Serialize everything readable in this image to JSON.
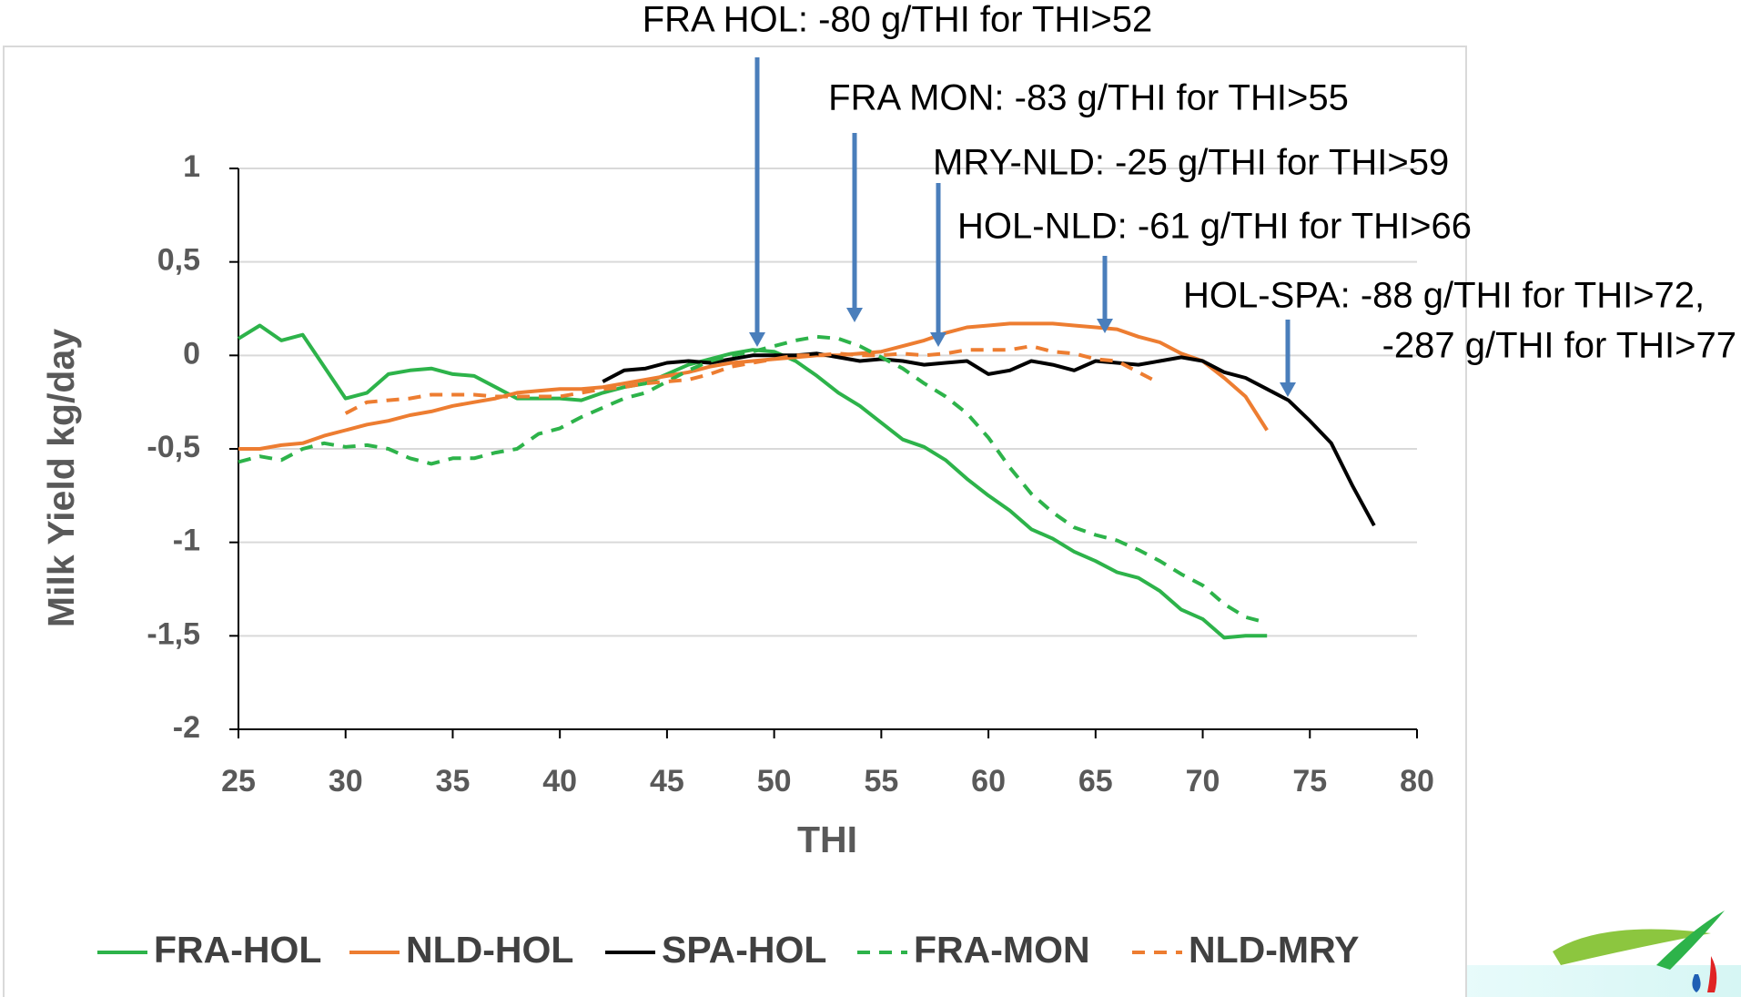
{
  "chart_data": {
    "type": "line",
    "x_label": "THI",
    "y_label": "Milk Yield kg/day",
    "x": [
      25,
      26,
      27,
      28,
      29,
      30,
      31,
      32,
      33,
      34,
      35,
      36,
      37,
      38,
      39,
      40,
      41,
      42,
      43,
      44,
      45,
      46,
      47,
      48,
      49,
      50,
      51,
      52,
      53,
      54,
      55,
      56,
      57,
      58,
      59,
      60,
      61,
      62,
      63,
      64,
      65,
      66,
      67,
      68,
      69,
      70,
      71,
      72,
      73,
      74,
      75,
      76,
      77,
      78
    ],
    "series": [
      {
        "name": "FRA-HOL",
        "color": "#2db34a",
        "dashed": false,
        "values": [
          0.09,
          0.16,
          0.08,
          0.11,
          -0.06,
          -0.23,
          -0.2,
          -0.1,
          -0.08,
          -0.07,
          -0.1,
          -0.11,
          -0.17,
          -0.23,
          -0.23,
          -0.23,
          -0.24,
          -0.2,
          -0.17,
          -0.15,
          -0.1,
          -0.05,
          -0.02,
          0.01,
          0.03,
          0.02,
          -0.03,
          -0.11,
          -0.2,
          -0.27,
          -0.36,
          -0.45,
          -0.49,
          -0.56,
          -0.66,
          -0.75,
          -0.83,
          -0.93,
          -0.98,
          -1.05,
          -1.1,
          -1.16,
          -1.19,
          -1.26,
          -1.36,
          -1.41,
          -1.51,
          -1.5,
          -1.5,
          null,
          null,
          null,
          null,
          null
        ]
      },
      {
        "name": "NLD-HOL",
        "color": "#ed7d31",
        "dashed": false,
        "values": [
          -0.5,
          -0.5,
          -0.48,
          -0.47,
          -0.43,
          -0.4,
          -0.37,
          -0.35,
          -0.32,
          -0.3,
          -0.27,
          -0.25,
          -0.23,
          -0.2,
          -0.19,
          -0.18,
          -0.18,
          -0.17,
          -0.15,
          -0.13,
          -0.11,
          -0.09,
          -0.06,
          -0.04,
          -0.03,
          -0.02,
          -0.01,
          0,
          0,
          0.01,
          0.02,
          0.05,
          0.08,
          0.12,
          0.15,
          0.16,
          0.17,
          0.17,
          0.17,
          0.16,
          0.15,
          0.14,
          0.1,
          0.07,
          0.01,
          -0.03,
          -0.12,
          -0.22,
          -0.4,
          null,
          null,
          null,
          null,
          null
        ]
      },
      {
        "name": "SPA-HOL",
        "color": "#000000",
        "dashed": false,
        "values": [
          null,
          null,
          null,
          null,
          null,
          null,
          null,
          null,
          null,
          null,
          null,
          null,
          null,
          null,
          null,
          null,
          null,
          -0.14,
          -0.08,
          -0.07,
          -0.04,
          -0.03,
          -0.04,
          -0.02,
          0,
          0,
          0,
          0.01,
          -0.01,
          -0.03,
          -0.02,
          -0.03,
          -0.05,
          -0.04,
          -0.03,
          -0.1,
          -0.08,
          -0.03,
          -0.05,
          -0.08,
          -0.03,
          -0.04,
          -0.05,
          -0.03,
          -0.01,
          -0.03,
          -0.09,
          -0.12,
          -0.18,
          -0.24,
          -0.35,
          -0.47,
          -0.7,
          -0.91
        ]
      },
      {
        "name": "FRA-MON",
        "color": "#2db34a",
        "dashed": true,
        "values": [
          -0.57,
          -0.54,
          -0.56,
          -0.5,
          -0.47,
          -0.49,
          -0.48,
          -0.5,
          -0.55,
          -0.58,
          -0.55,
          -0.55,
          -0.52,
          -0.5,
          -0.42,
          -0.39,
          -0.33,
          -0.28,
          -0.23,
          -0.2,
          -0.14,
          -0.08,
          -0.03,
          0,
          0.02,
          0.05,
          0.08,
          0.1,
          0.09,
          0.05,
          -0.01,
          -0.07,
          -0.15,
          -0.22,
          -0.31,
          -0.44,
          -0.6,
          -0.74,
          -0.84,
          -0.92,
          -0.96,
          -0.99,
          -1.04,
          -1.1,
          -1.17,
          -1.23,
          -1.33,
          -1.4,
          -1.43,
          null,
          null,
          null,
          null,
          null
        ]
      },
      {
        "name": "NLD-MRY",
        "color": "#ed7d31",
        "dashed": true,
        "values": [
          null,
          null,
          null,
          null,
          null,
          -0.31,
          -0.25,
          -0.24,
          -0.23,
          -0.21,
          -0.21,
          -0.21,
          -0.22,
          -0.22,
          -0.22,
          -0.22,
          -0.2,
          -0.18,
          -0.17,
          -0.15,
          -0.14,
          -0.13,
          -0.1,
          -0.06,
          -0.04,
          -0.02,
          0,
          0,
          0.01,
          0,
          0,
          0.01,
          0,
          0.01,
          0.03,
          0.03,
          0.03,
          0.05,
          0.02,
          0.01,
          -0.02,
          -0.03,
          -0.09,
          -0.15,
          null,
          null,
          null,
          null,
          null,
          null,
          null,
          null,
          null,
          null
        ]
      }
    ],
    "xlim": [
      25,
      80
    ],
    "xticks": [
      25,
      30,
      35,
      40,
      45,
      50,
      55,
      60,
      65,
      70,
      75,
      80
    ],
    "ylim": [
      -2,
      1
    ],
    "yticks": [
      {
        "value": 1,
        "label": "1"
      },
      {
        "value": 0.5,
        "label": "0,5"
      },
      0,
      {
        "value": -0.5,
        "label": "-0,5"
      },
      -1,
      {
        "value": -1.5,
        "label": "-1,5"
      },
      -2
    ],
    "grid": true,
    "legend": "bottom",
    "annotations": [
      [
        "FRA HOL: -80 g/THI for THI>52"
      ],
      [
        "FRA MON: -83 g/THI for THI>55"
      ],
      [
        "MRY-NLD: -25 g/THI for THI>59"
      ],
      [
        "HOL-NLD: -61 g/THI for THI>66"
      ],
      [
        "HOL-SPA: -88 g/THI for THI>72,",
        "-287 g/THI for THI>77"
      ]
    ]
  }
}
